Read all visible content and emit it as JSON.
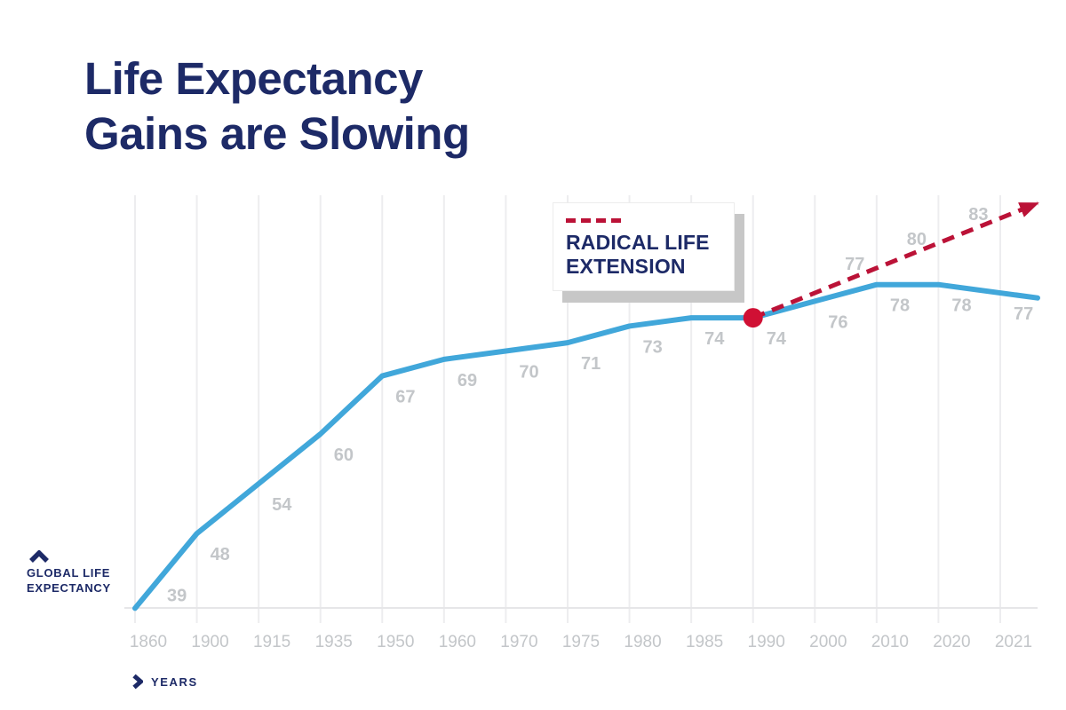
{
  "page": {
    "background": "#ffffff",
    "title_line1": "Life Expectancy",
    "title_line2": "Gains are Slowing"
  },
  "colors": {
    "title_navy": "#1d2a67",
    "line_blue": "#41a7da",
    "projection_red": "#bb1237",
    "marker_red": "#d01034",
    "label_gray": "#c3c6c9",
    "grid_gray": "#ededef",
    "baseline_gray": "#e6e6e8",
    "legend_shadow": "#c7c7c7"
  },
  "legend": {
    "swatch": "red-dashed-line",
    "title_line1": "RADICAL LIFE",
    "title_line2": "EXTENSION"
  },
  "axes": {
    "y_axis_label_line1": "GLOBAL LIFE",
    "y_axis_label_line2": "EXPECTANCY",
    "x_axis_label": "YEARS"
  },
  "chart_data": {
    "type": "line",
    "title": "Life Expectancy Gains are Slowing",
    "xlabel": "YEARS",
    "ylabel": "GLOBAL LIFE EXPECTANCY",
    "grid": "vertical-only",
    "categories": [
      "1860",
      "1900",
      "1915",
      "1935",
      "1950",
      "1960",
      "1970",
      "1975",
      "1980",
      "1985",
      "1990",
      "2000",
      "2010",
      "2020",
      "2021"
    ],
    "series": [
      {
        "name": "Global life expectancy (historical)",
        "style": "solid",
        "color": "#41a7da",
        "values": [
          39,
          48,
          54,
          60,
          67,
          69,
          70,
          71,
          73,
          74,
          74,
          76,
          78,
          78,
          77
        ],
        "point_labels": [
          "39",
          "48",
          "54",
          "60",
          "67",
          "69",
          "70",
          "71",
          "73",
          "74",
          "74",
          "76",
          "78",
          "78",
          "77"
        ]
      },
      {
        "name": "Radical life extension (projection)",
        "style": "dashed",
        "color": "#bb1237",
        "x": [
          "1990",
          "2000",
          "2010",
          "2020"
        ],
        "values": [
          74,
          77,
          80,
          83
        ],
        "point_labels": [
          "",
          "77",
          "80",
          "83"
        ],
        "arrow_end": true
      }
    ],
    "annotations": [
      {
        "type": "point-marker",
        "x": "1990",
        "value": 74,
        "color": "#d01034",
        "meaning": "projection start"
      }
    ],
    "legend": {
      "position": "upper-middle",
      "entries": [
        {
          "label": "RADICAL LIFE EXTENSION",
          "style": "red-dashed"
        }
      ]
    }
  }
}
